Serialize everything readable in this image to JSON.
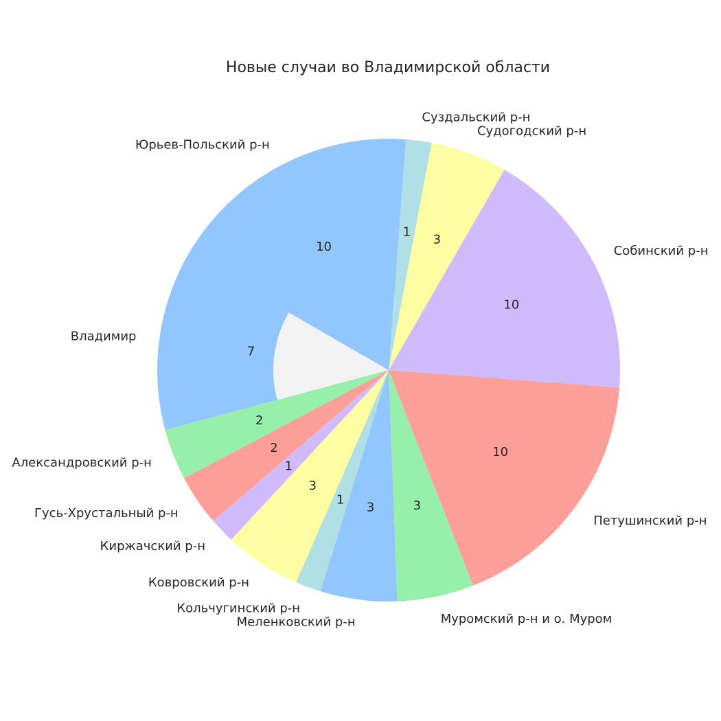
{
  "chart_data": {
    "type": "donut",
    "title": "Новые случаи во Владимирской области",
    "categories": [
      "Владимир",
      "Александровский р-н",
      "Гусь-Хрустальный р-н",
      "Киржачский р-н",
      "Ковровский р-н",
      "Кольчугинский р-н",
      "Меленковский р-н",
      "Муромский р-н и о. Муром",
      "Петушинский р-н",
      "Собинский р-н",
      "Судогодский р-н",
      "Суздальский р-н",
      "Юрьев-Польский р-н"
    ],
    "values": [
      7,
      2,
      2,
      1,
      3,
      1,
      3,
      3,
      10,
      10,
      3,
      1,
      10
    ],
    "colors": [
      "#92c6ff",
      "#97f0aa",
      "#ff9f9a",
      "#d0bbff",
      "#fffea3",
      "#b0e0e6",
      "#92c6ff",
      "#97f0aa",
      "#ff9f9a",
      "#d0bbff",
      "#fffea3",
      "#b0e0e6",
      "#92c6ff"
    ],
    "start_angle": 150
  }
}
